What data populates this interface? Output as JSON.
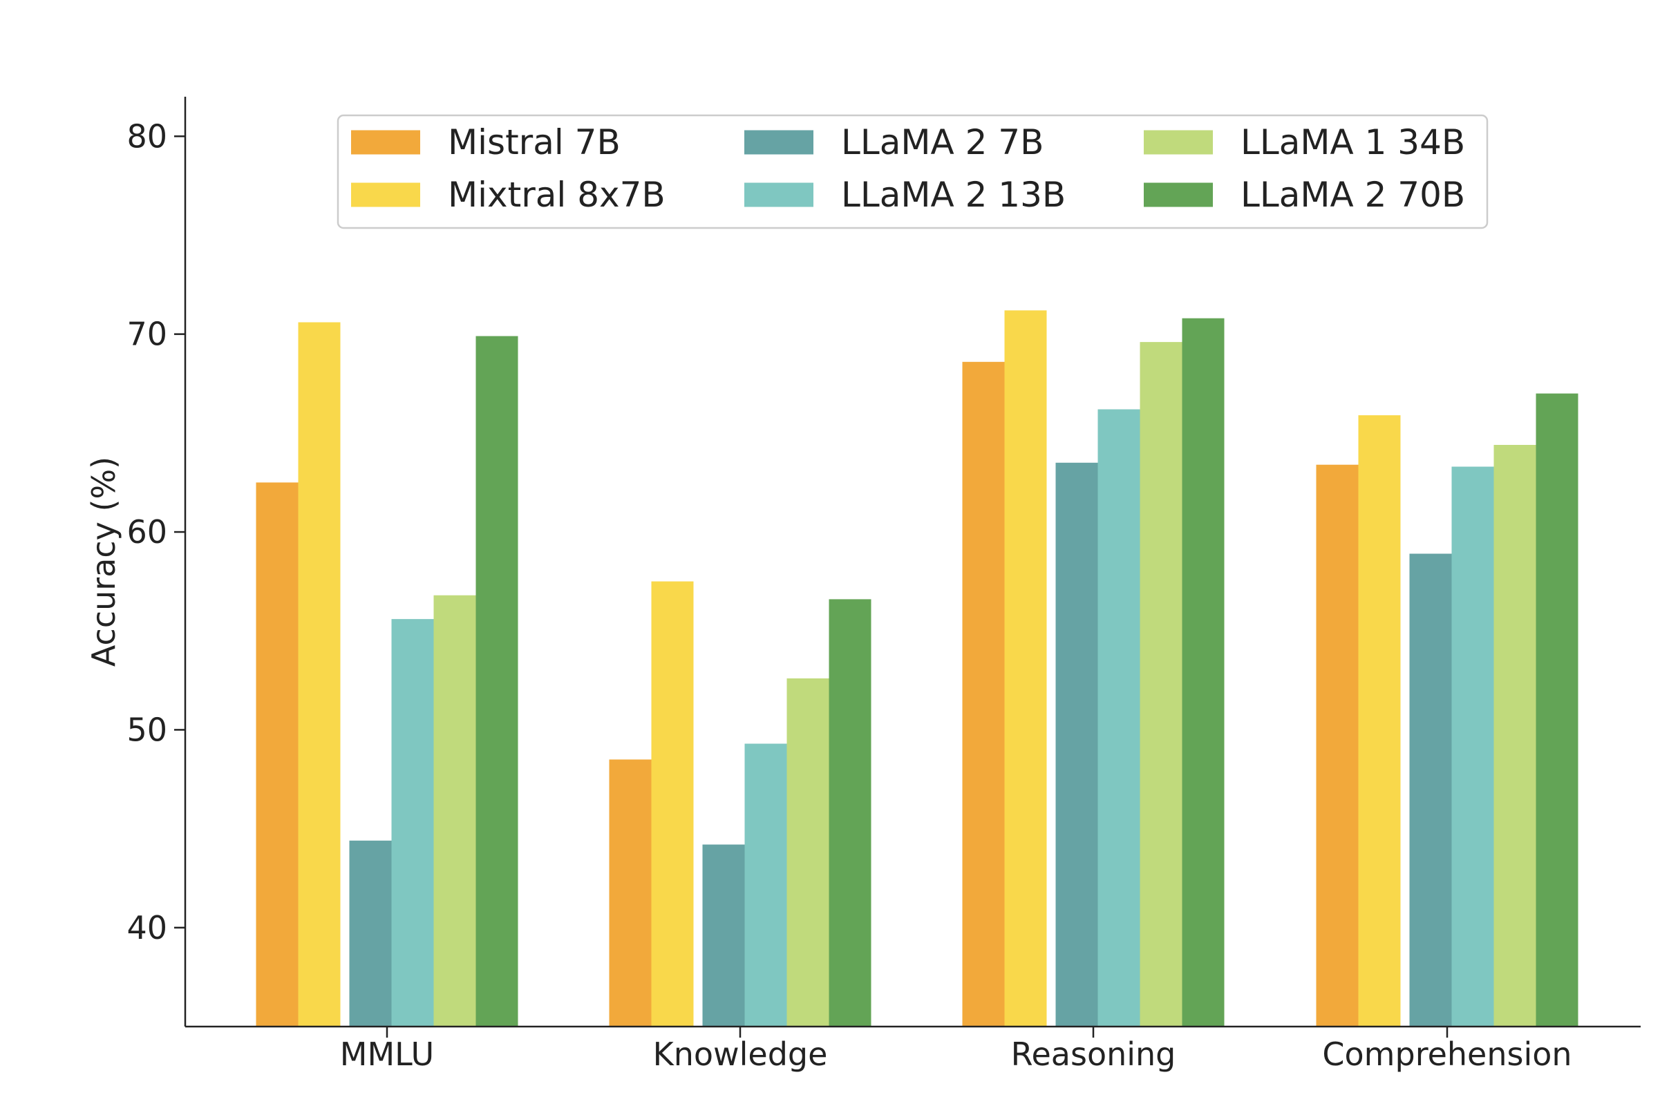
{
  "chart_data": {
    "type": "bar",
    "title": "",
    "xlabel": "",
    "ylabel": "Accuracy (%)",
    "ylim": [
      35,
      82
    ],
    "yticks": [
      40,
      50,
      60,
      70,
      80
    ],
    "categories": [
      "MMLU",
      "Knowledge",
      "Reasoning",
      "Comprehension"
    ],
    "grid": false,
    "legend_position": "top-center",
    "legend_columns": 3,
    "series": [
      {
        "name": "Mistral 7B",
        "color": "#F2A93B",
        "group": "A",
        "values": [
          62.5,
          48.5,
          68.6,
          63.4
        ]
      },
      {
        "name": "Mixtral 8x7B",
        "color": "#F9D84B",
        "group": "A",
        "values": [
          70.6,
          57.5,
          71.2,
          65.9
        ]
      },
      {
        "name": "LLaMA 2 7B",
        "color": "#66A3A4",
        "group": "B",
        "values": [
          44.4,
          44.2,
          63.5,
          58.9
        ]
      },
      {
        "name": "LLaMA 2 13B",
        "color": "#7FC7C1",
        "group": "B",
        "values": [
          55.6,
          49.3,
          66.2,
          63.3
        ]
      },
      {
        "name": "LLaMA 1 34B",
        "color": "#C0DA7C",
        "group": "B",
        "values": [
          56.8,
          52.6,
          69.6,
          64.4
        ]
      },
      {
        "name": "LLaMA 2 70B",
        "color": "#63A456",
        "group": "B",
        "values": [
          69.9,
          56.6,
          70.8,
          67.0
        ]
      }
    ]
  }
}
